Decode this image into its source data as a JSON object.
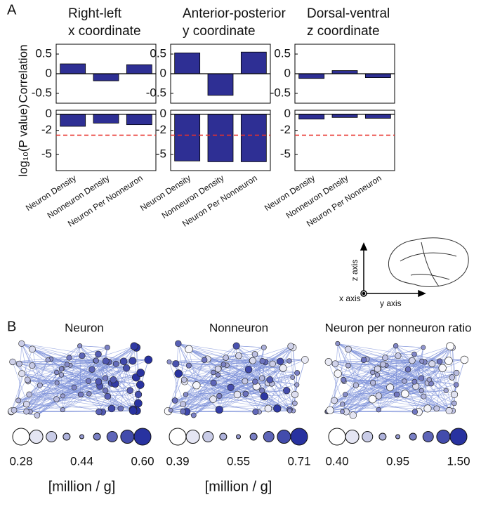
{
  "panel_labels": [
    "A",
    "B"
  ],
  "chart_data": [
    {
      "type": "bar",
      "title": [
        "Right-left",
        "x coordinate"
      ],
      "ylabel": "Correlation",
      "values": [
        0.25,
        -0.18,
        0.23
      ],
      "color": "#2e2f94",
      "ylim": [
        -0.75,
        0.75
      ],
      "yticks": [
        0.5,
        0,
        -0.5
      ]
    },
    {
      "type": "bar",
      "ylabel": "log₁₀(P value)",
      "categories": [
        "Neuron Density",
        "Nonneuron Density",
        "Neuron Per Nonneuron"
      ],
      "values": [
        -1.5,
        -1.1,
        -1.3
      ],
      "color": "#2e2f94",
      "ylim": [
        -7,
        0.5
      ],
      "yticks": [
        0,
        -2,
        -5
      ],
      "threshold": -2.6,
      "threshold_color": "#e8312a"
    },
    {
      "type": "bar",
      "title": [
        "Anterior-posterior",
        "y coordinate"
      ],
      "values": [
        0.53,
        -0.55,
        0.55
      ],
      "color": "#2e2f94",
      "ylim": [
        -0.75,
        0.75
      ],
      "yticks": [
        0.5,
        0,
        -0.5
      ]
    },
    {
      "type": "bar",
      "categories": [
        "Neuron Density",
        "Nonneuron Density",
        "Neuron Per Nonneuron"
      ],
      "values": [
        -5.8,
        -5.9,
        -5.9
      ],
      "color": "#2e2f94",
      "ylim": [
        -7,
        0.5
      ],
      "yticks": [
        0,
        -2,
        -5
      ],
      "threshold": -2.6,
      "threshold_color": "#e8312a"
    },
    {
      "type": "bar",
      "title": [
        "Dorsal-ventral",
        "z coordinate"
      ],
      "values": [
        -0.12,
        0.08,
        -0.1
      ],
      "color": "#2e2f94",
      "ylim": [
        -0.75,
        0.75
      ],
      "yticks": [
        0.5,
        0,
        -0.5
      ]
    },
    {
      "type": "bar",
      "categories": [
        "Neuron Density",
        "Nonneuron Density",
        "Neuron Per Nonneuron"
      ],
      "values": [
        -0.6,
        -0.4,
        -0.5
      ],
      "color": "#2e2f94",
      "ylim": [
        -7,
        0.5
      ],
      "yticks": [
        0,
        -2,
        -5
      ],
      "threshold": -2.6,
      "threshold_color": "#e8312a"
    }
  ],
  "inset": {
    "z_label": "z axis",
    "y_label": "y axis",
    "x_label": "x axis"
  },
  "networks": [
    {
      "title": "Neuron",
      "legend_ticks": [
        0.28,
        0.44,
        {
          "value": 0.6,
          "label": "0.60"
        }
      ],
      "units": "[million / g]"
    },
    {
      "title": "Nonneuron",
      "legend_ticks": [
        0.39,
        0.55,
        0.71
      ],
      "units": "[million / g]"
    },
    {
      "title": "Neuron per nonneuron ratio",
      "legend_ticks": [
        {
          "value": 0.4,
          "label": "0.40"
        },
        0.95,
        {
          "value": 1.5,
          "label": "1.50"
        }
      ]
    }
  ]
}
